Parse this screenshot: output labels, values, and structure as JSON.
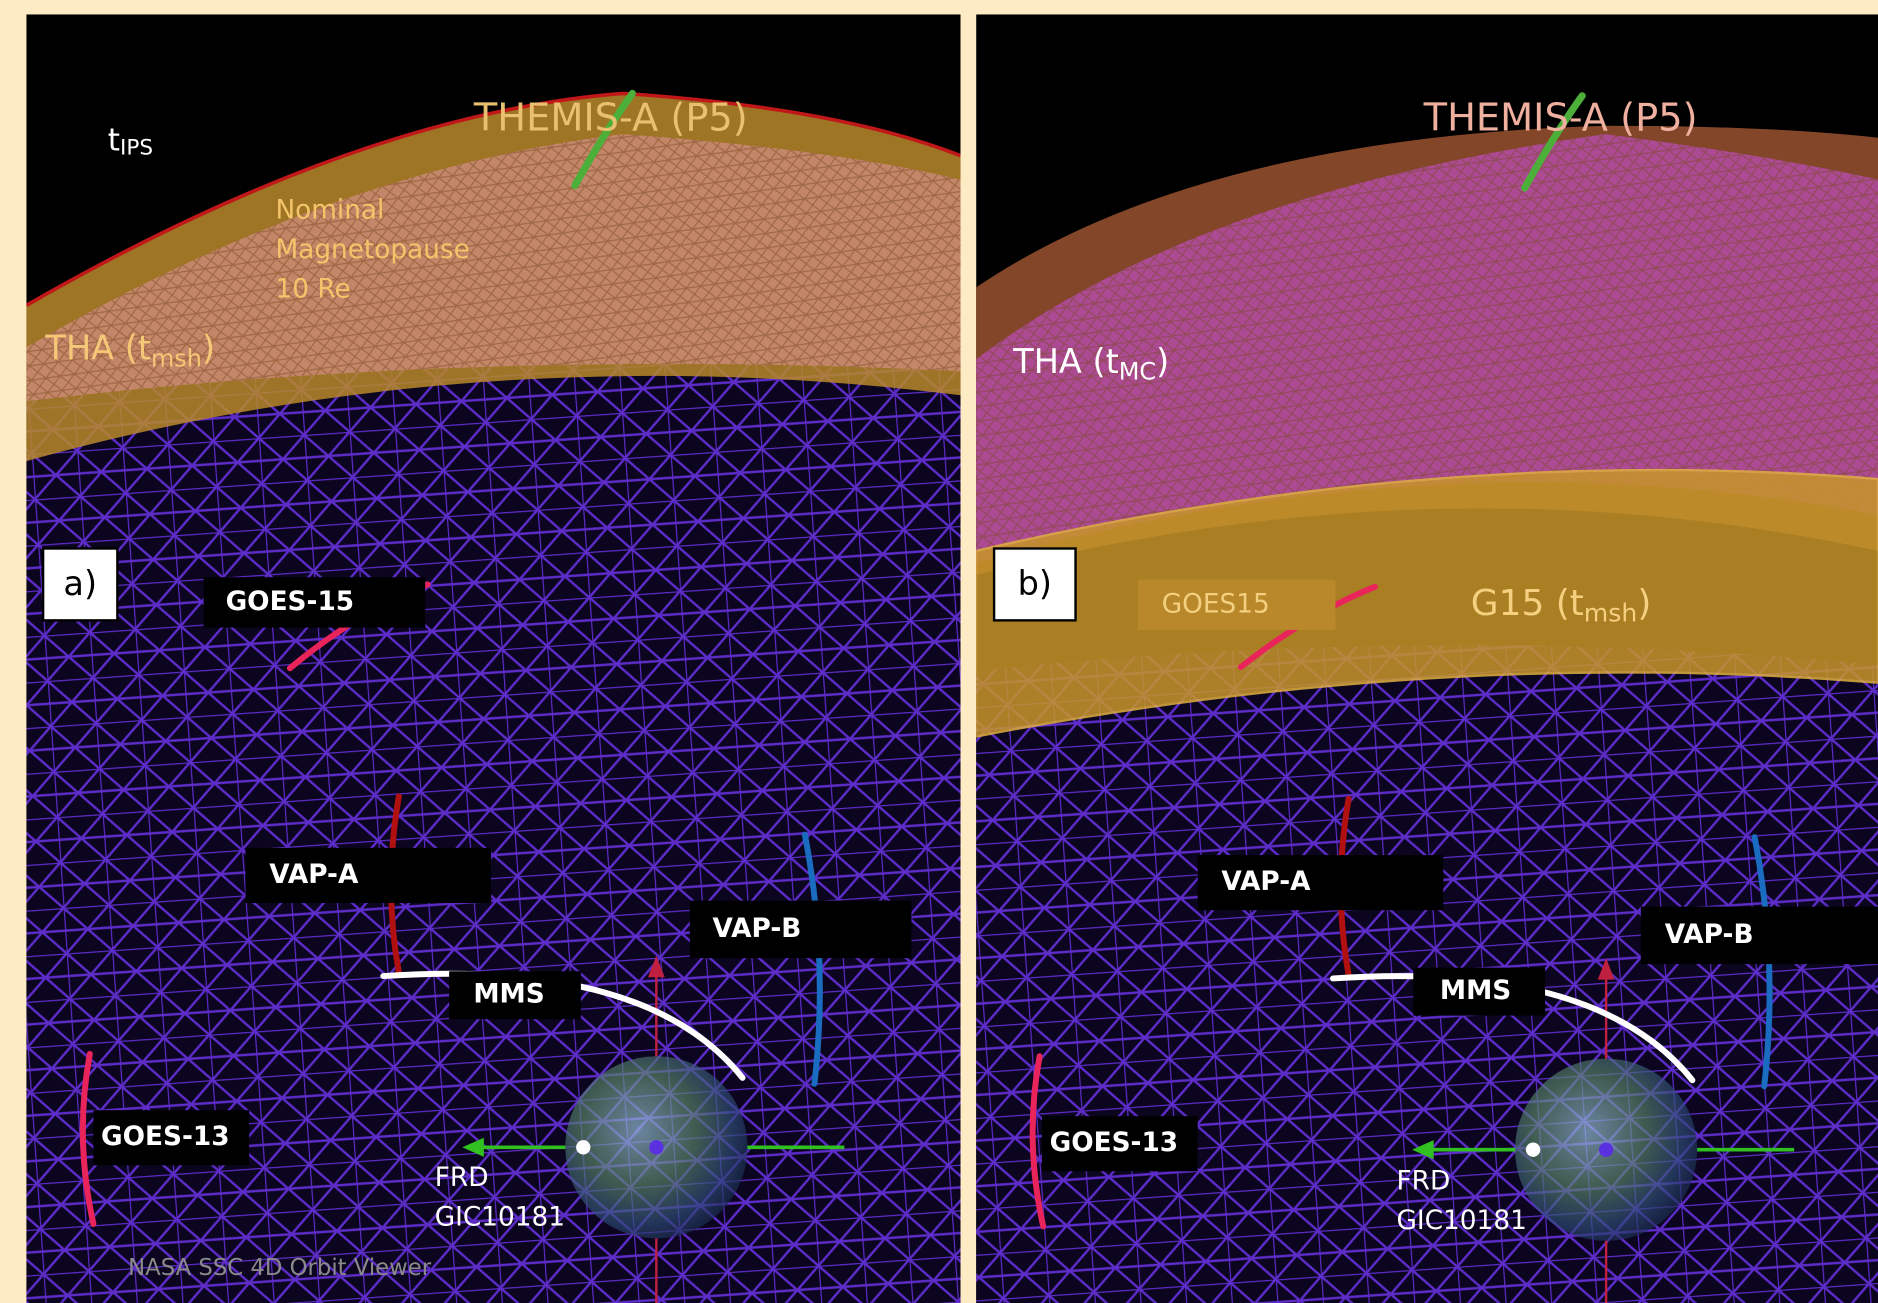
{
  "panels": [
    {
      "label": "a)",
      "top_label": {
        "base": "t",
        "sub": "IPS"
      },
      "themis": "THEMIS-A (P5)",
      "magnetopause": [
        "Nominal",
        "Magnetopause",
        "10 Re"
      ],
      "region": {
        "base": "THA (t",
        "sub": "msh",
        "end": ")"
      },
      "goes15": "GOES-15",
      "vap_a": "VAP-A",
      "vap_b": "VAP-B",
      "mms": "MMS",
      "goes13": "GOES-13",
      "station": [
        "FRD",
        "GIC10181"
      ],
      "credit": "NASA SSC 4D Orbit Viewer"
    },
    {
      "label": "b)",
      "themis": "THEMIS-A (P5)",
      "region": {
        "base": "THA (t",
        "sub": "MC",
        "end": ")"
      },
      "goes15": "GOES15",
      "region2": {
        "base": "G15 (t",
        "sub": "msh",
        "end": ")"
      },
      "vap_a": "VAP-A",
      "vap_b": "VAP-B",
      "mms": "MMS",
      "goes13": "GOES-13",
      "station": [
        "FRD",
        "GIC10181"
      ]
    }
  ]
}
